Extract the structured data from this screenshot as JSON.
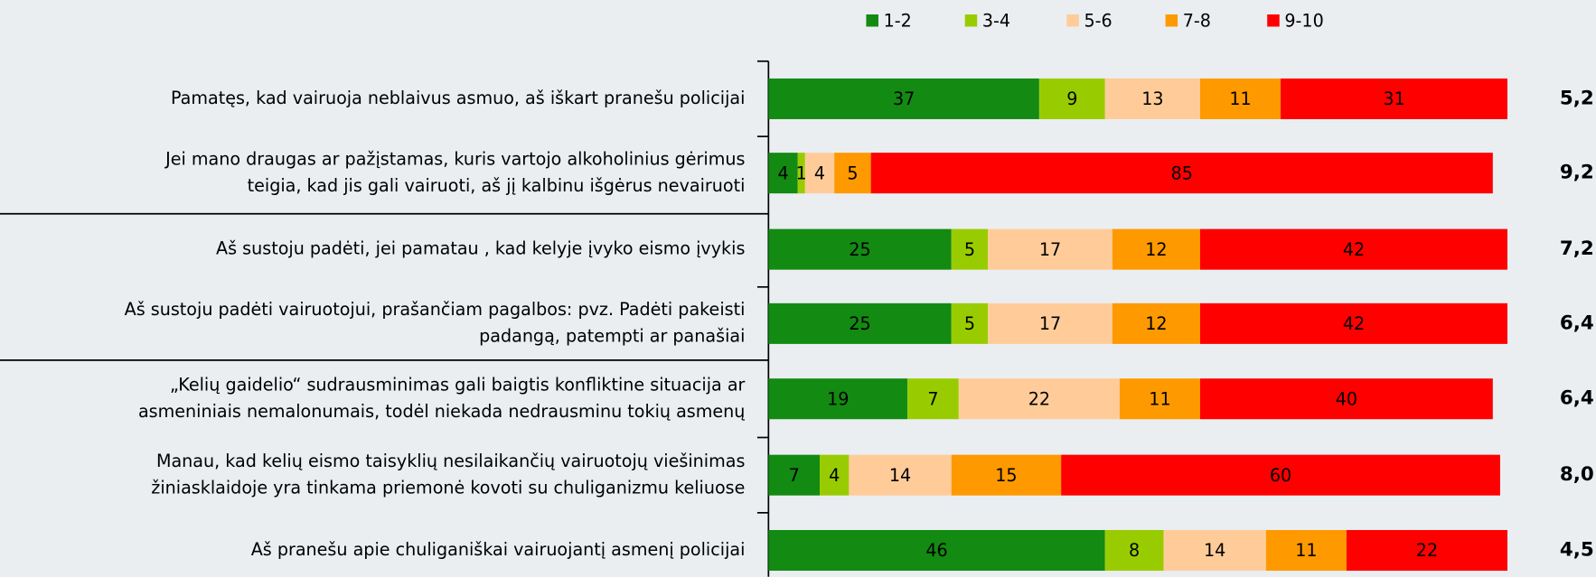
{
  "chart_data": {
    "type": "stacked_bar_horizontal",
    "categories": [
      [
        "Pamatęs, kad vairuoja neblaivus asmuo, aš iškart pranešu  policijai"
      ],
      [
        "Jei mano draugas ar pažįstamas, kuris vartojo alkoholinius gėrimus",
        "teigia, kad jis gali vairuoti, aš jį kalbinu išgėrus nevairuoti"
      ],
      [
        "Aš sustoju  padėti, jei pamatau , kad kelyje įvyko eismo įvykis"
      ],
      [
        "Aš sustoju  padėti vairuotojui, prašančiam pagalbos: pvz. Padėti pakeisti",
        "padangą, patempti ar panašiai"
      ],
      [
        "„Kelių gaidelio“ sudrausminimas gali baigtis konfliktine situacija ar",
        "asmeniniais nemalonumais, todėl niekada nedrausminu tokių asmenų"
      ],
      [
        "Manau, kad kelių eismo  taisyklių nesilaikančių vairuotojų viešinimas",
        "žiniasklaidoje yra tinkama priemonė kovoti su chuliganizmu keliuose"
      ],
      [
        "Aš pranešu  apie chuliganiškai vairuojantį asmenį policijai"
      ]
    ],
    "series": [
      {
        "name": "1-2",
        "color": "#138a12",
        "label_color": "#ffffff",
        "values": [
          37,
          4,
          25,
          25,
          19,
          7,
          46
        ]
      },
      {
        "name": "3-4",
        "color": "#99cc00",
        "label_color": "#ffffff",
        "values": [
          9,
          1,
          5,
          5,
          7,
          4,
          8
        ]
      },
      {
        "name": "5-6",
        "color": "#ffcc99",
        "label_color": "#000000",
        "values": [
          13,
          4,
          17,
          17,
          22,
          14,
          14
        ]
      },
      {
        "name": "7-8",
        "color": "#ff9900",
        "label_color": "#ffffff",
        "values": [
          11,
          5,
          12,
          12,
          11,
          15,
          11
        ]
      },
      {
        "name": "9-10",
        "color": "#ff0000",
        "label_color": "#ffffff",
        "values": [
          31,
          85,
          42,
          42,
          40,
          60,
          22
        ]
      }
    ],
    "averages": {
      "values": [
        5.2,
        9.2,
        7.2,
        6.4,
        6.4,
        8.0,
        4.5
      ],
      "value_labels": [
        "5,2",
        "9,2",
        "7,2",
        "6,4",
        "6,4",
        "8,0",
        "4,5"
      ]
    },
    "xlim": [
      0,
      101
    ],
    "legend": "top"
  }
}
